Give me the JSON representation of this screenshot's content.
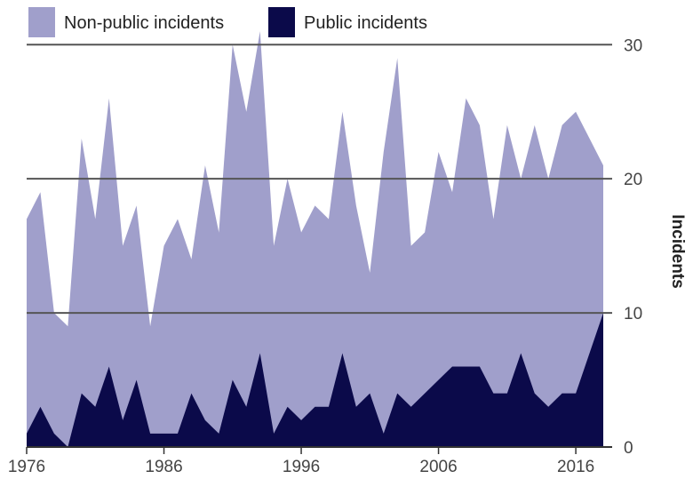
{
  "chart_data": {
    "type": "area",
    "stacked": false,
    "x": [
      1976,
      1977,
      1978,
      1979,
      1980,
      1981,
      1982,
      1983,
      1984,
      1985,
      1986,
      1987,
      1988,
      1989,
      1990,
      1991,
      1992,
      1993,
      1994,
      1995,
      1996,
      1997,
      1998,
      1999,
      2000,
      2001,
      2002,
      2003,
      2004,
      2005,
      2006,
      2007,
      2008,
      2009,
      2010,
      2011,
      2012,
      2013,
      2014,
      2015,
      2016,
      2017,
      2018
    ],
    "series": [
      {
        "name": "Non-public incidents",
        "color": "#a09fcb",
        "values": [
          17,
          19,
          10,
          9,
          23,
          17,
          26,
          15,
          18,
          9,
          15,
          17,
          14,
          21,
          16,
          30,
          25,
          31,
          15,
          20,
          16,
          18,
          17,
          25,
          18,
          13,
          22,
          29,
          15,
          16,
          22,
          19,
          26,
          24,
          17,
          24,
          20,
          24,
          20,
          24,
          25,
          23,
          21
        ]
      },
      {
        "name": "Public incidents",
        "color": "#0b0a4a",
        "values": [
          1,
          3,
          1,
          0,
          4,
          3,
          6,
          2,
          5,
          1,
          1,
          1,
          4,
          2,
          1,
          5,
          3,
          7,
          1,
          3,
          2,
          3,
          3,
          7,
          3,
          4,
          1,
          4,
          3,
          4,
          5,
          6,
          6,
          6,
          4,
          4,
          7,
          4,
          3,
          4,
          4,
          7,
          10
        ]
      }
    ],
    "xticks": [
      "1976",
      "1986",
      "1996",
      "2006",
      "2016"
    ],
    "yticks": [
      "0",
      "10",
      "20",
      "30"
    ],
    "ylim": [
      0,
      33
    ],
    "xlim": [
      1976,
      2018
    ],
    "ylabel": "Incidents",
    "y_axis_side": "right",
    "grid": "horizontal",
    "legend_position": "top-left"
  }
}
